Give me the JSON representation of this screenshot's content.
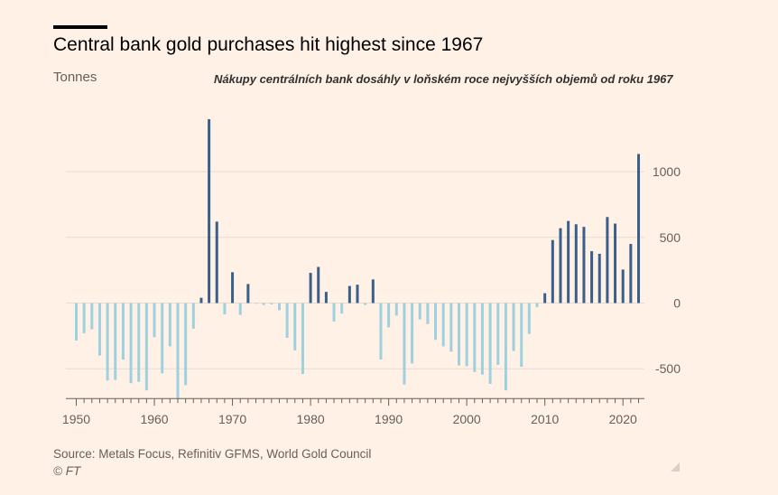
{
  "header": {
    "title": "Central bank gold purchases hit highest since 1967",
    "unit": "Tonnes",
    "subtitle": "Nákupy centrálních bank dosáhly v loňském roce nejvyšších objemů od roku 1967"
  },
  "footer": {
    "source": "Source: Metals Focus, Refinitiv GFMS, World Gold Council",
    "copyright": "© FT"
  },
  "colors": {
    "positive": "#3a5f8a",
    "negative": "#9fd0e0",
    "grid": "#e6dcd3",
    "axis": "#66605c"
  },
  "chart_data": {
    "type": "bar",
    "title": "Central bank gold purchases hit highest since 1967",
    "ylabel": "Tonnes",
    "ylim": [
      -720,
      1400
    ],
    "yticks": [
      -500,
      0,
      500,
      1000
    ],
    "xticks": [
      1950,
      1960,
      1970,
      1980,
      1990,
      2000,
      2010,
      2020
    ],
    "grid": true,
    "years": [
      1950,
      1951,
      1952,
      1953,
      1954,
      1955,
      1956,
      1957,
      1958,
      1959,
      1960,
      1961,
      1962,
      1963,
      1964,
      1965,
      1966,
      1967,
      1968,
      1969,
      1970,
      1971,
      1972,
      1973,
      1974,
      1975,
      1976,
      1977,
      1978,
      1979,
      1980,
      1981,
      1982,
      1983,
      1984,
      1985,
      1986,
      1987,
      1988,
      1989,
      1990,
      1991,
      1992,
      1993,
      1994,
      1995,
      1996,
      1997,
      1998,
      1999,
      2000,
      2001,
      2002,
      2003,
      2004,
      2005,
      2006,
      2007,
      2008,
      2009,
      2010,
      2011,
      2012,
      2013,
      2014,
      2015,
      2016,
      2017,
      2018,
      2019,
      2020,
      2021,
      2022
    ],
    "values": [
      -285,
      -230,
      -200,
      -400,
      -590,
      -585,
      -430,
      -610,
      -600,
      -665,
      -260,
      -535,
      -330,
      -730,
      -625,
      -195,
      40,
      1400,
      620,
      -85,
      235,
      -90,
      145,
      -5,
      -15,
      -10,
      -55,
      -265,
      -360,
      -540,
      230,
      275,
      85,
      -140,
      -80,
      130,
      140,
      -15,
      180,
      -430,
      -185,
      -95,
      -620,
      -460,
      -125,
      -160,
      -280,
      -330,
      -370,
      -475,
      -480,
      -525,
      -545,
      -615,
      -470,
      -665,
      -365,
      -485,
      -235,
      -30,
      75,
      480,
      570,
      625,
      600,
      580,
      395,
      375,
      655,
      605,
      255,
      450,
      1135
    ]
  }
}
